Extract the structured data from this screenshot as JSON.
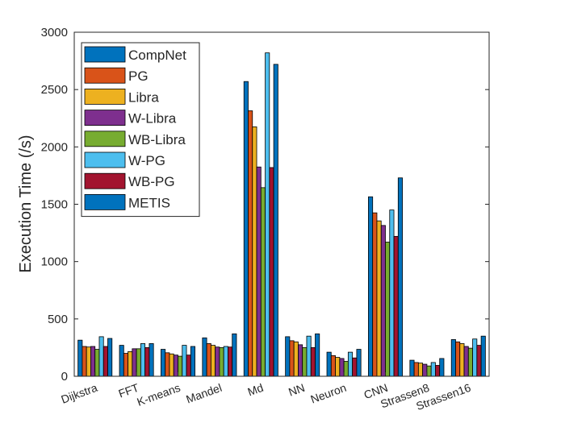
{
  "chart_data": {
    "type": "bar",
    "title": "",
    "xlabel": "",
    "ylabel": "Execution Time (/s)",
    "ylim": [
      0,
      3000
    ],
    "yticks": [
      0,
      500,
      1000,
      1500,
      2000,
      2500,
      3000
    ],
    "grid": false,
    "legend_position": "top-left",
    "categories": [
      "Dijkstra",
      "FFT",
      "K-means",
      "Mandel",
      "Md",
      "NN",
      "Neuron",
      "CNN",
      "Strassen8",
      "Strassen16"
    ],
    "series": [
      {
        "name": "CompNet",
        "color": "#0072BD",
        "values": [
          315,
          270,
          235,
          335,
          2570,
          345,
          210,
          1565,
          140,
          320
        ]
      },
      {
        "name": "PG",
        "color": "#D95319",
        "values": [
          260,
          200,
          205,
          285,
          2315,
          310,
          180,
          1425,
          120,
          300
        ]
      },
      {
        "name": "Libra",
        "color": "#EDB120",
        "values": [
          255,
          215,
          195,
          270,
          2175,
          300,
          165,
          1355,
          115,
          285
        ]
      },
      {
        "name": "W-Libra",
        "color": "#7E2F8E",
        "values": [
          260,
          240,
          185,
          255,
          1825,
          275,
          155,
          1315,
          105,
          260
        ]
      },
      {
        "name": "WB-Libra",
        "color": "#77AC30",
        "values": [
          235,
          240,
          175,
          250,
          1645,
          250,
          130,
          1170,
          90,
          245
        ]
      },
      {
        "name": "W-PG",
        "color": "#4DBEEE",
        "values": [
          345,
          285,
          270,
          260,
          2820,
          350,
          210,
          1450,
          120,
          325
        ]
      },
      {
        "name": "WB-PG",
        "color": "#A2142F",
        "values": [
          260,
          250,
          185,
          255,
          1820,
          250,
          160,
          1220,
          95,
          270
        ]
      },
      {
        "name": "METIS",
        "color": "#0072BD",
        "values": [
          330,
          285,
          260,
          370,
          2720,
          370,
          235,
          1730,
          155,
          350
        ]
      }
    ]
  }
}
